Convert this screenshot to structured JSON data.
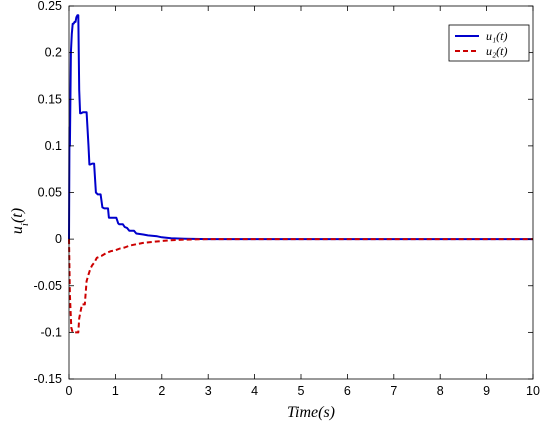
{
  "chart_data": {
    "type": "line",
    "xlabel": "Time(s)",
    "ylabel": "u_i(t)",
    "xlim": [
      0,
      10
    ],
    "ylim": [
      -0.15,
      0.25
    ],
    "xticks": [
      "0",
      "1",
      "2",
      "3",
      "4",
      "5",
      "6",
      "7",
      "8",
      "9",
      "10"
    ],
    "yticks": [
      "-0.15",
      "-0.1",
      "-0.05",
      "0",
      "0.05",
      "0.1",
      "0.15",
      "0.2",
      "0.25"
    ],
    "grid": false,
    "legend_position": "top-right",
    "series": [
      {
        "name": "u₁(t)",
        "color": "#0000cc",
        "style": "solid",
        "x": [
          0,
          0.01,
          0.02,
          0.04,
          0.06,
          0.08,
          0.1,
          0.12,
          0.14,
          0.16,
          0.18,
          0.2,
          0.22,
          0.24,
          0.26,
          0.3,
          0.34,
          0.38,
          0.42,
          0.44,
          0.46,
          0.5,
          0.54,
          0.58,
          0.62,
          0.64,
          0.68,
          0.72,
          0.76,
          0.8,
          0.84,
          0.86,
          0.9,
          0.94,
          0.98,
          1.02,
          1.06,
          1.08,
          1.12,
          1.16,
          1.2,
          1.25,
          1.3,
          1.4,
          1.45,
          1.6,
          1.7,
          1.9,
          2.0,
          2.2,
          2.5,
          3.0,
          4.0,
          5.0,
          10.0
        ],
        "y": [
          0,
          0.12,
          0.1,
          0.2,
          0.22,
          0.231,
          0.231,
          0.233,
          0.233,
          0.238,
          0.24,
          0.24,
          0.16,
          0.135,
          0.135,
          0.136,
          0.136,
          0.136,
          0.1,
          0.08,
          0.08,
          0.081,
          0.081,
          0.05,
          0.048,
          0.048,
          0.048,
          0.034,
          0.033,
          0.033,
          0.033,
          0.023,
          0.023,
          0.023,
          0.023,
          0.023,
          0.017,
          0.016,
          0.016,
          0.016,
          0.013,
          0.012,
          0.009,
          0.009,
          0.006,
          0.005,
          0.004,
          0.003,
          0.002,
          0.001,
          0.0005,
          0,
          0,
          0,
          0
        ]
      },
      {
        "name": "u₂(t)",
        "color": "#cc0000",
        "style": "dashed",
        "x": [
          0,
          0.02,
          0.05,
          0.08,
          0.1,
          0.12,
          0.14,
          0.16,
          0.18,
          0.2,
          0.22,
          0.24,
          0.28,
          0.3,
          0.34,
          0.38,
          0.42,
          0.46,
          0.5,
          0.55,
          0.6,
          0.7,
          0.8,
          0.9,
          1.0,
          1.1,
          1.2,
          1.3,
          1.4,
          1.5,
          1.6,
          1.8,
          2.0,
          2.2,
          2.5,
          3.0,
          3.5,
          4.0,
          5.0,
          10.0
        ],
        "y": [
          0,
          -0.06,
          -0.095,
          -0.1,
          -0.1,
          -0.1,
          -0.1,
          -0.1,
          -0.1,
          -0.1,
          -0.085,
          -0.08,
          -0.07,
          -0.07,
          -0.07,
          -0.045,
          -0.038,
          -0.032,
          -0.028,
          -0.025,
          -0.02,
          -0.018,
          -0.015,
          -0.013,
          -0.012,
          -0.01,
          -0.009,
          -0.007,
          -0.006,
          -0.005,
          -0.004,
          -0.003,
          -0.002,
          -0.0012,
          -0.0005,
          0,
          0,
          0,
          0,
          0
        ]
      }
    ]
  }
}
